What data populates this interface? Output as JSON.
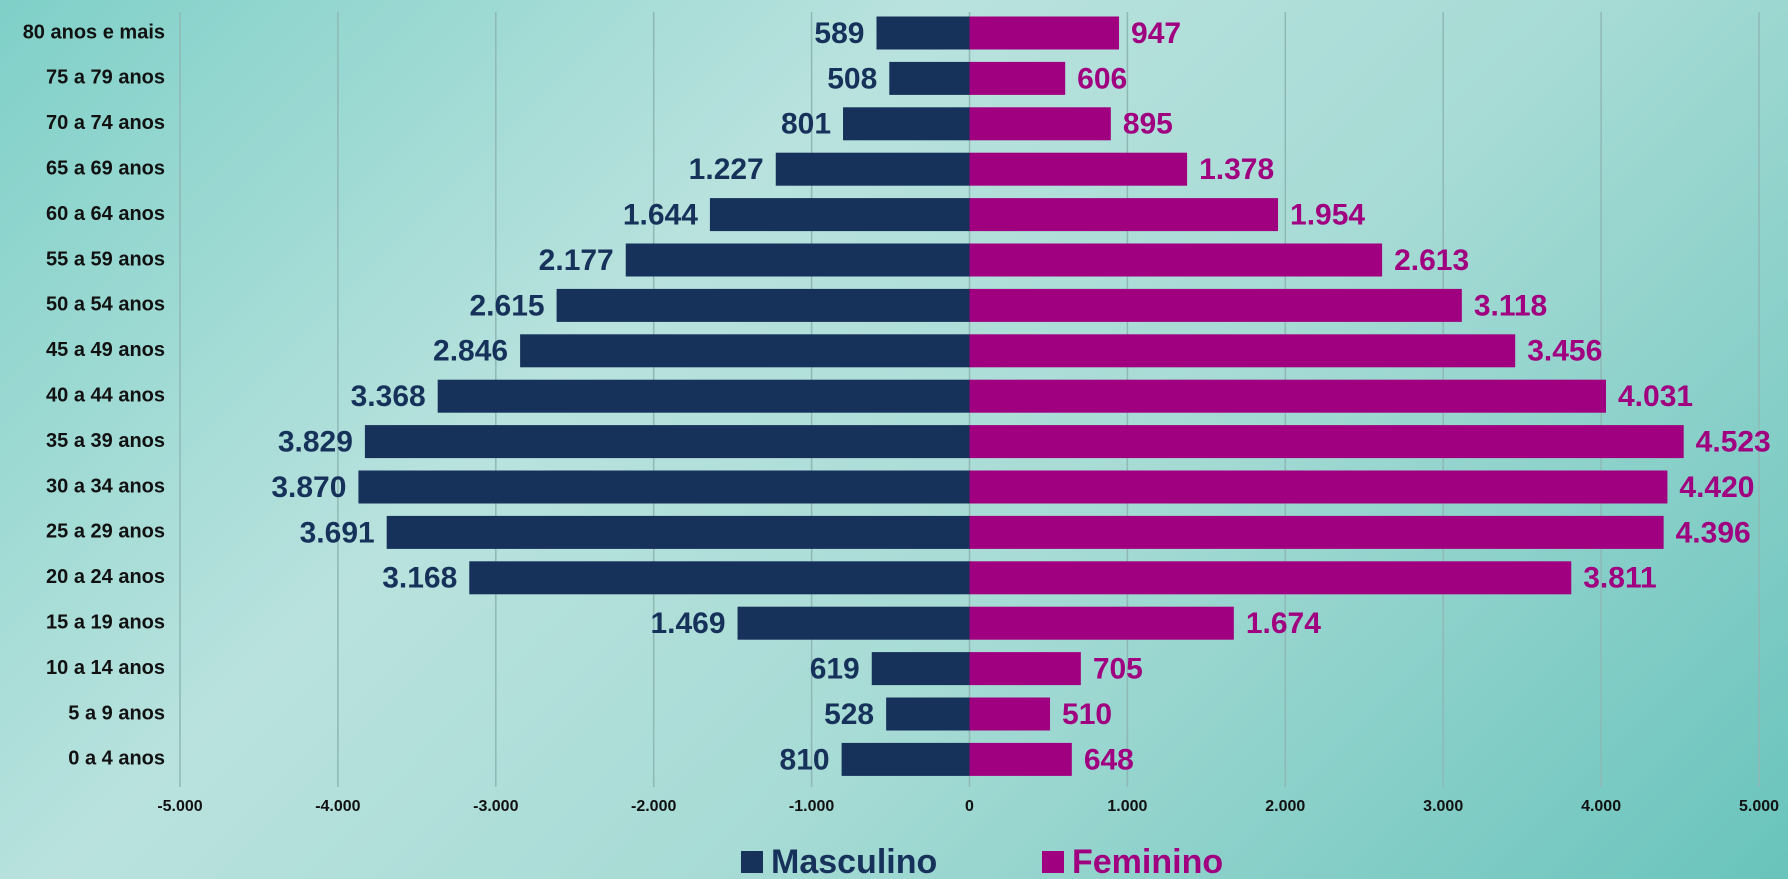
{
  "chart_data": {
    "type": "pyramid",
    "categories": [
      "80 anos e mais",
      "75 a 79 anos",
      "70 a 74 anos",
      "65 a 69 anos",
      "60 a 64 anos",
      "55 a 59 anos",
      "50 a 54 anos",
      "45 a 49 anos",
      "40 a 44 anos",
      "35 a 39 anos",
      "30 a 34 anos",
      "25 a 29 anos",
      "20 a 24 anos",
      "15 a 19 anos",
      "10 a 14 anos",
      "5 a 9 anos",
      "0 a 4 anos"
    ],
    "series": [
      {
        "name": "Masculino",
        "color": "#17325a",
        "values": [
          -589,
          -508,
          -801,
          -1227,
          -1644,
          -2177,
          -2615,
          -2846,
          -3368,
          -3829,
          -3870,
          -3691,
          -3168,
          -1469,
          -619,
          -528,
          -810
        ],
        "value_labels": [
          "589",
          "508",
          "801",
          "1.227",
          "1.644",
          "2.177",
          "2.615",
          "2.846",
          "3.368",
          "3.829",
          "3.870",
          "3.691",
          "3.168",
          "1.469",
          "619",
          "528",
          "810"
        ]
      },
      {
        "name": "Feminino",
        "color": "#a0007f",
        "values": [
          947,
          606,
          895,
          1378,
          1954,
          2613,
          3118,
          3456,
          4031,
          4523,
          4420,
          4396,
          3811,
          1674,
          705,
          510,
          648
        ],
        "value_labels": [
          "947",
          "606",
          "895",
          "1.378",
          "1.954",
          "2.613",
          "3.118",
          "3.456",
          "4.031",
          "4.523",
          "4.420",
          "4.396",
          "3.811",
          "1.674",
          "705",
          "510",
          "648"
        ]
      }
    ],
    "xlim": [
      -5000,
      5000
    ],
    "xticks": [
      {
        "value": -5000,
        "label": "-5.000"
      },
      {
        "value": -4000,
        "label": "-4.000"
      },
      {
        "value": -3000,
        "label": "-3.000"
      },
      {
        "value": -2000,
        "label": "-2.000"
      },
      {
        "value": -1000,
        "label": "-1.000"
      },
      0,
      {
        "value": 1000,
        "label": "1.000"
      },
      {
        "value": 2000,
        "label": "2.000"
      },
      {
        "value": 3000,
        "label": "3.000"
      },
      {
        "value": 4000,
        "label": "4.000"
      },
      {
        "value": 5000,
        "label": "5.000"
      }
    ],
    "grid": true,
    "legend": "bottom"
  }
}
